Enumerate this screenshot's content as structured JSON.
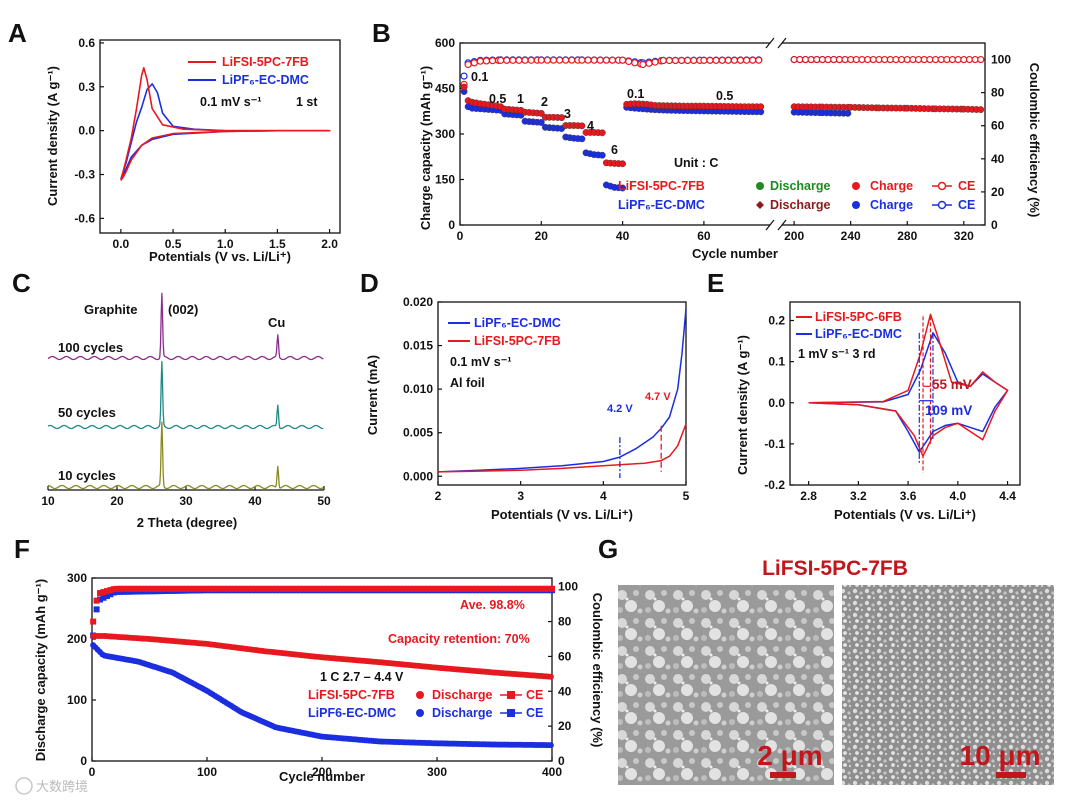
{
  "panels": {
    "A": {
      "letter": "A",
      "ylabel": "Current density (A g⁻¹)",
      "xlabel": "Potentials (V vs. Li/Li⁺)",
      "legend": [
        "LiFSI-5PC-7FB",
        "LiPF₆-EC-DMC"
      ],
      "annotation": [
        "0.1 mV s⁻¹",
        "1 st"
      ]
    },
    "B": {
      "letter": "B",
      "ylabel_left": "Charge capacity (mAh g⁻¹)",
      "ylabel_right": "Coulombic efficiency (%)",
      "xlabel": "Cycle number",
      "rate_labels": [
        "0.1",
        "0.5",
        "1",
        "2",
        "3",
        "4",
        "6",
        "0.1",
        "0.5"
      ],
      "unit": "Unit : C",
      "legend_rows": [
        {
          "name": "LiFSI-5PC-7FB",
          "discharge": "Discharge",
          "charge": "Charge",
          "ce": "CE"
        },
        {
          "name": "LiPF₆-EC-DMC",
          "discharge": "Discharge",
          "charge": "Charge",
          "ce": "CE"
        }
      ]
    },
    "C": {
      "letter": "C",
      "xlabel": "2 Theta (degree)",
      "labels": [
        "Graphite",
        "(002)",
        "Cu"
      ],
      "traces": [
        "100 cycles",
        "50 cycles",
        "10 cycles"
      ]
    },
    "D": {
      "letter": "D",
      "ylabel": "Current (mA)",
      "xlabel": "Potentials (V vs. Li/Li⁺)",
      "legend": [
        "LiPF₆-EC-DMC",
        "LiFSI-5PC-7FB"
      ],
      "annotation": [
        "0.1 mV s⁻¹",
        "Al foil"
      ],
      "markers": [
        "4.2 V",
        "4.7 V"
      ]
    },
    "E": {
      "letter": "E",
      "ylabel": "Current density (A g⁻¹)",
      "xlabel": "Potentials (V vs. Li/Li⁺)",
      "legend": [
        "LiFSI-5PC-6FB",
        "LiPF₆-EC-DMC"
      ],
      "annotation": "1 mV s⁻¹  3 rd",
      "markers": [
        "55 mV",
        "109 mV"
      ]
    },
    "F": {
      "letter": "F",
      "ylabel_left": "Discharge capacity (mAh g⁻¹)",
      "ylabel_right": "Coulombic efficiency (%)",
      "xlabel": "Cycle number",
      "ave": "Ave. 98.8%",
      "retention": "Capacity retention: 70%",
      "condition": "1 C  2.7 – 4.4 V",
      "legend_rows": [
        {
          "name": "LiFSI-5PC-7FB",
          "discharge": "Discharge",
          "ce": "CE"
        },
        {
          "name": "LiPF6-EC-DMC",
          "discharge": "Discharge",
          "ce": "CE"
        }
      ]
    },
    "G": {
      "letter": "G",
      "title": "LiFSI-5PC-7FB",
      "scalebars": [
        "2 μm",
        "10 μm"
      ]
    }
  },
  "watermark": "大数跨境",
  "colors": {
    "red": "#e8191e",
    "blue": "#1b2ee0",
    "green": "#1f8a1f",
    "maroon": "#8b1a1a",
    "purple": "#8a2d8a",
    "teal": "#1f8a86",
    "olive": "#8a8a1f",
    "darkred": "#c0161c"
  },
  "chart_data": [
    {
      "panel": "A",
      "type": "line",
      "xlim": [
        -0.2,
        2.1
      ],
      "ylim": [
        -0.7,
        0.62
      ],
      "xticks": [
        0.0,
        0.5,
        1.0,
        1.5,
        2.0
      ],
      "yticks": [
        -0.6,
        -0.3,
        0.0,
        0.3,
        0.6
      ],
      "series": [
        {
          "name": "LiFSI-5PC-7FB",
          "x": [
            0.0,
            0.05,
            0.1,
            0.15,
            0.2,
            0.22,
            0.25,
            0.3,
            0.4,
            0.6,
            1.0,
            1.5,
            2.0,
            1.5,
            1.0,
            0.5,
            0.3,
            0.2,
            0.1,
            0.05,
            0.02,
            0.0
          ],
          "y": [
            -0.34,
            -0.2,
            -0.05,
            0.15,
            0.38,
            0.43,
            0.35,
            0.15,
            0.04,
            0.01,
            0.0,
            0.0,
            0.0,
            0.0,
            -0.005,
            -0.02,
            -0.05,
            -0.1,
            -0.2,
            -0.28,
            -0.32,
            -0.34
          ]
        },
        {
          "name": "LiPF6-EC-DMC",
          "x": [
            0.0,
            0.05,
            0.1,
            0.15,
            0.2,
            0.25,
            0.3,
            0.35,
            0.4,
            0.5,
            0.7,
            1.0,
            1.5,
            2.0,
            1.5,
            1.0,
            0.5,
            0.3,
            0.2,
            0.1,
            0.05,
            0.02,
            0.0
          ],
          "y": [
            -0.33,
            -0.22,
            -0.08,
            0.06,
            0.16,
            0.28,
            0.32,
            0.26,
            0.12,
            0.03,
            0.01,
            0.0,
            0.0,
            0.0,
            0.0,
            -0.005,
            -0.025,
            -0.06,
            -0.1,
            -0.18,
            -0.26,
            -0.31,
            -0.33
          ]
        }
      ]
    },
    {
      "panel": "B",
      "type": "scatter",
      "segments": [
        {
          "xlim": [
            0,
            77
          ],
          "xticks": [
            0,
            20,
            40,
            60
          ]
        },
        {
          "xlim": [
            190,
            335
          ],
          "xticks": [
            200,
            240,
            280,
            320
          ]
        }
      ],
      "ylim_left": [
        0,
        600
      ],
      "yticks_left": [
        0,
        150,
        300,
        450,
        600
      ],
      "ylim_right": [
        0,
        110
      ],
      "yticks_right": [
        0,
        20,
        40,
        60,
        80,
        100
      ],
      "series": [
        {
          "name": "LiFSI-5PC-7FB charge",
          "axis": "left",
          "points": [
            [
              1,
              455
            ],
            [
              2,
              410
            ],
            [
              3,
              405
            ],
            [
              5,
              400
            ],
            [
              8,
              395
            ],
            [
              10,
              390
            ],
            [
              11,
              382
            ],
            [
              13,
              380
            ],
            [
              15,
              378
            ],
            [
              16,
              372
            ],
            [
              18,
              370
            ],
            [
              20,
              368
            ],
            [
              21,
              355
            ],
            [
              23,
              355
            ],
            [
              25,
              354
            ],
            [
              26,
              328
            ],
            [
              28,
              328
            ],
            [
              30,
              327
            ],
            [
              31,
              305
            ],
            [
              33,
              305
            ],
            [
              35,
              304
            ],
            [
              36,
              205
            ],
            [
              38,
              203
            ],
            [
              40,
              202
            ],
            [
              41,
              398
            ],
            [
              43,
              400
            ],
            [
              46,
              398
            ],
            [
              48,
              394
            ],
            [
              52,
              393
            ],
            [
              56,
              392
            ],
            [
              60,
              392
            ],
            [
              65,
              391
            ],
            [
              70,
              390
            ],
            [
              75,
              390
            ],
            [
              200,
              390
            ],
            [
              220,
              389
            ],
            [
              240,
              388
            ],
            [
              260,
              386
            ],
            [
              280,
              385
            ],
            [
              300,
              383
            ],
            [
              320,
              382
            ],
            [
              335,
              380
            ]
          ]
        },
        {
          "name": "LiPF6-EC-DMC charge",
          "axis": "left",
          "points": [
            [
              1,
              440
            ],
            [
              2,
              390
            ],
            [
              3,
              385
            ],
            [
              5,
              383
            ],
            [
              8,
              380
            ],
            [
              10,
              378
            ],
            [
              11,
              366
            ],
            [
              13,
              364
            ],
            [
              15,
              362
            ],
            [
              16,
              342
            ],
            [
              18,
              340
            ],
            [
              20,
              338
            ],
            [
              21,
              322
            ],
            [
              23,
              320
            ],
            [
              25,
              318
            ],
            [
              26,
              290
            ],
            [
              28,
              286
            ],
            [
              30,
              284
            ],
            [
              31,
              238
            ],
            [
              33,
              232
            ],
            [
              35,
              230
            ],
            [
              36,
              132
            ],
            [
              38,
              124
            ],
            [
              40,
              122
            ],
            [
              41,
              388
            ],
            [
              43,
              385
            ],
            [
              46,
              382
            ],
            [
              48,
              380
            ],
            [
              52,
              378
            ],
            [
              56,
              377
            ],
            [
              60,
              376
            ],
            [
              65,
              375
            ],
            [
              70,
              374
            ],
            [
              75,
              373
            ],
            [
              200,
              372
            ],
            [
              220,
              370
            ],
            [
              240,
              368
            ]
          ]
        },
        {
          "name": "LiFSI-5PC-7FB CE",
          "axis": "right",
          "points": [
            [
              1,
              85
            ],
            [
              2,
              97
            ],
            [
              5,
              99
            ],
            [
              10,
              99.5
            ],
            [
              20,
              99.6
            ],
            [
              30,
              99.6
            ],
            [
              40,
              99.6
            ],
            [
              45,
              97
            ],
            [
              50,
              99.4
            ],
            [
              60,
              99.5
            ],
            [
              75,
              99.6
            ],
            [
              200,
              100
            ],
            [
              260,
              100
            ],
            [
              335,
              100
            ]
          ]
        },
        {
          "name": "LiPF6-EC-DMC CE",
          "axis": "right",
          "points": [
            [
              1,
              90
            ],
            [
              2,
              98
            ],
            [
              5,
              99.5
            ],
            [
              10,
              99.8
            ],
            [
              20,
              99.8
            ],
            [
              30,
              99.8
            ],
            [
              40,
              99.6
            ],
            [
              45,
              98
            ],
            [
              50,
              99.5
            ],
            [
              60,
              99.6
            ],
            [
              75,
              99.8
            ],
            [
              200,
              100
            ],
            [
              240,
              100
            ]
          ]
        }
      ]
    },
    {
      "panel": "C",
      "type": "line",
      "xlim": [
        10,
        50
      ],
      "xticks": [
        10,
        20,
        30,
        40,
        50
      ],
      "peaks": [
        26.5,
        43.3
      ],
      "series": [
        {
          "name": "100 cycles"
        },
        {
          "name": "50 cycles"
        },
        {
          "name": "10 cycles"
        }
      ]
    },
    {
      "panel": "D",
      "type": "line",
      "xlim": [
        2,
        5
      ],
      "xticks": [
        2,
        3,
        4,
        5
      ],
      "ylim": [
        -0.001,
        0.02
      ],
      "yticks": [
        0.0,
        0.005,
        0.01,
        0.015,
        0.02
      ],
      "series": [
        {
          "name": "LiPF6-EC-DMC",
          "x": [
            2.0,
            2.5,
            3.0,
            3.5,
            4.0,
            4.2,
            4.4,
            4.6,
            4.7,
            4.8,
            4.9,
            4.95,
            5.0
          ],
          "y": [
            0.0005,
            0.0007,
            0.0009,
            0.0012,
            0.0017,
            0.0022,
            0.0032,
            0.0045,
            0.0055,
            0.0068,
            0.01,
            0.014,
            0.0192
          ]
        },
        {
          "name": "LiFSI-5PC-7FB",
          "x": [
            2.0,
            2.5,
            3.0,
            3.5,
            4.0,
            4.5,
            4.7,
            4.8,
            4.9,
            5.0
          ],
          "y": [
            0.0005,
            0.0006,
            0.0007,
            0.0009,
            0.0012,
            0.0015,
            0.0018,
            0.0023,
            0.0035,
            0.006
          ]
        }
      ]
    },
    {
      "panel": "E",
      "type": "line",
      "xlim": [
        2.65,
        4.5
      ],
      "xticks": [
        2.8,
        3.2,
        3.6,
        4.0,
        4.4
      ],
      "ylim": [
        -0.2,
        0.245
      ],
      "yticks": [
        -0.2,
        -0.1,
        0.0,
        0.1,
        0.2
      ],
      "series": [
        {
          "name": "LiFSI-5PC-6FB",
          "x": [
            2.8,
            3.4,
            3.6,
            3.7,
            3.78,
            3.85,
            3.95,
            4.1,
            4.2,
            4.3,
            4.4,
            4.3,
            4.2,
            4.1,
            4.0,
            3.9,
            3.8,
            3.72,
            3.65,
            3.5,
            3.2,
            2.8
          ],
          "y": [
            0.0,
            0.003,
            0.03,
            0.12,
            0.215,
            0.15,
            0.05,
            0.04,
            0.075,
            0.05,
            0.03,
            -0.02,
            -0.09,
            -0.07,
            -0.05,
            -0.06,
            -0.08,
            -0.13,
            -0.08,
            -0.02,
            -0.005,
            0.0
          ]
        },
        {
          "name": "LiPF6-EC-DMC",
          "x": [
            2.8,
            3.4,
            3.6,
            3.7,
            3.8,
            3.9,
            4.0,
            4.1,
            4.2,
            4.3,
            4.4,
            4.3,
            4.2,
            4.1,
            4.0,
            3.9,
            3.8,
            3.69,
            3.6,
            3.5,
            3.2,
            2.8
          ],
          "y": [
            0.0,
            0.002,
            0.02,
            0.08,
            0.17,
            0.12,
            0.05,
            0.04,
            0.07,
            0.05,
            0.03,
            -0.01,
            -0.07,
            -0.06,
            -0.05,
            -0.055,
            -0.07,
            -0.12,
            -0.07,
            -0.02,
            -0.005,
            0.0
          ]
        }
      ]
    },
    {
      "panel": "F",
      "type": "scatter",
      "xlim": [
        0,
        400
      ],
      "xticks": [
        0,
        100,
        200,
        300,
        400
      ],
      "ylim_left": [
        0,
        300
      ],
      "yticks_left": [
        0,
        100,
        200,
        300
      ],
      "ylim_right": [
        0,
        105
      ],
      "yticks_right": [
        0,
        20,
        40,
        60,
        80,
        100
      ],
      "series": [
        {
          "name": "LiFSI-5PC-7FB discharge",
          "axis": "left",
          "x": [
            1,
            10,
            50,
            100,
            150,
            200,
            250,
            300,
            350,
            400
          ],
          "y": [
            205,
            205,
            200,
            192,
            180,
            170,
            162,
            153,
            145,
            138
          ]
        },
        {
          "name": "LiPF6-EC-DMC discharge",
          "axis": "left",
          "x": [
            1,
            10,
            40,
            70,
            100,
            130,
            160,
            200,
            250,
            300,
            350,
            400
          ],
          "y": [
            190,
            173,
            163,
            145,
            115,
            80,
            55,
            40,
            32,
            29,
            27,
            26
          ]
        },
        {
          "name": "LiFSI-5PC-7FB CE",
          "axis": "right",
          "x": [
            1,
            5,
            20,
            100,
            200,
            300,
            400
          ],
          "y": [
            80,
            96,
            98.8,
            98.8,
            98.8,
            98.8,
            98.8
          ]
        },
        {
          "name": "LiPF6-EC-DMC CE",
          "axis": "right",
          "x": [
            1,
            5,
            20,
            100,
            200,
            300,
            400
          ],
          "y": [
            72,
            92,
            97,
            98,
            98,
            98,
            98
          ]
        }
      ]
    }
  ]
}
